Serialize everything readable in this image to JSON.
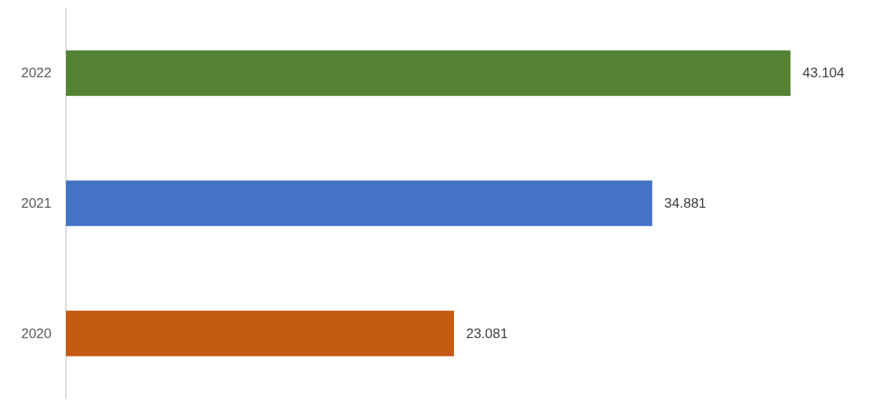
{
  "chart_data": {
    "type": "bar",
    "orientation": "horizontal",
    "categories": [
      "2022",
      "2021",
      "2020"
    ],
    "values": [
      43.104,
      34.881,
      23.081
    ],
    "colors": [
      "#548235",
      "#4472c4",
      "#c55a11"
    ],
    "data_labels": true
  }
}
